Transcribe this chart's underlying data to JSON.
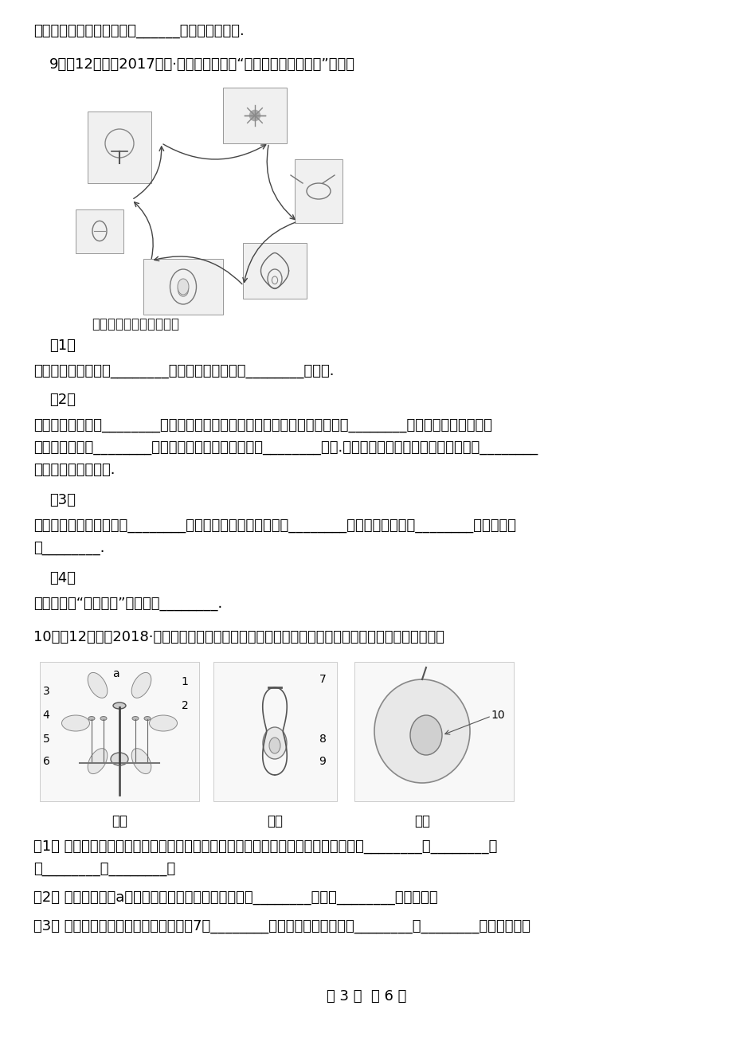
{
  "background_color": "#ffffff",
  "page_width": 9.2,
  "page_height": 13.02,
  "line1": "液和生长素，促使根细胞的______，尽快长处新根.",
  "q9_header": "9．（12分）（2017七上·蒙阴期末）根据“被子植物的生活史图”回答：",
  "fig1_caption": "被子植物的生活史示意图",
  "q9_1_label": "（1）",
  "q9_1_text": "图中花的主要部分是________．看图可知它是依靠________传粉的.",
  "q9_2_label": "（2）",
  "q9_2_text": "花粉粒落到雌蕊的________上面以后，受到其上黏液的刺激就开始萌发，形成________，此结构逐渐伸长到达",
  "q9_2_text2": "胚珠后会释放出________，与胚珠内的卵细胞结合进行________作用.如果子房中有五个胚珠，该子房需要________",
  "q9_2_text3": "粒花粉完成受精作用.",
  "q9_3_label": "（3）",
  "q9_3_text": "花完成受精后，一般只有________部分继续发育，将来发育成________．其中胚珠发育成________，珠被发育",
  "q9_3_text2": "成________.",
  "q9_4_label": "（4）",
  "q9_4_text": "该植物称为“被子植物”的原因是________.",
  "q10_header": "10．（12分）（2018·聊城）下图是被子植物花、受精过程及果实结构示意图，据图回答下列问题。",
  "fig2_caption1": "图一",
  "fig2_caption2": "图二",
  "fig2_caption3": "图三",
  "q10_1_text": "（1） 构成花的主要结构是雄蕊和雌蕊，图一所示的花的结构中，属于雄蕊结构的有（________）________和",
  "q10_1_text2": "（________）________。",
  "q10_2_text": "（2） 图一中标号（a）所示的过程称为传粉，其实质是________散落到________上的过程。",
  "q10_3_text": "（3） 图二示被子植物的受精过程，即（7）________中的精子与胚珠中的（________）________结合形成受精",
  "footer": "第 3 页  共 6 页"
}
